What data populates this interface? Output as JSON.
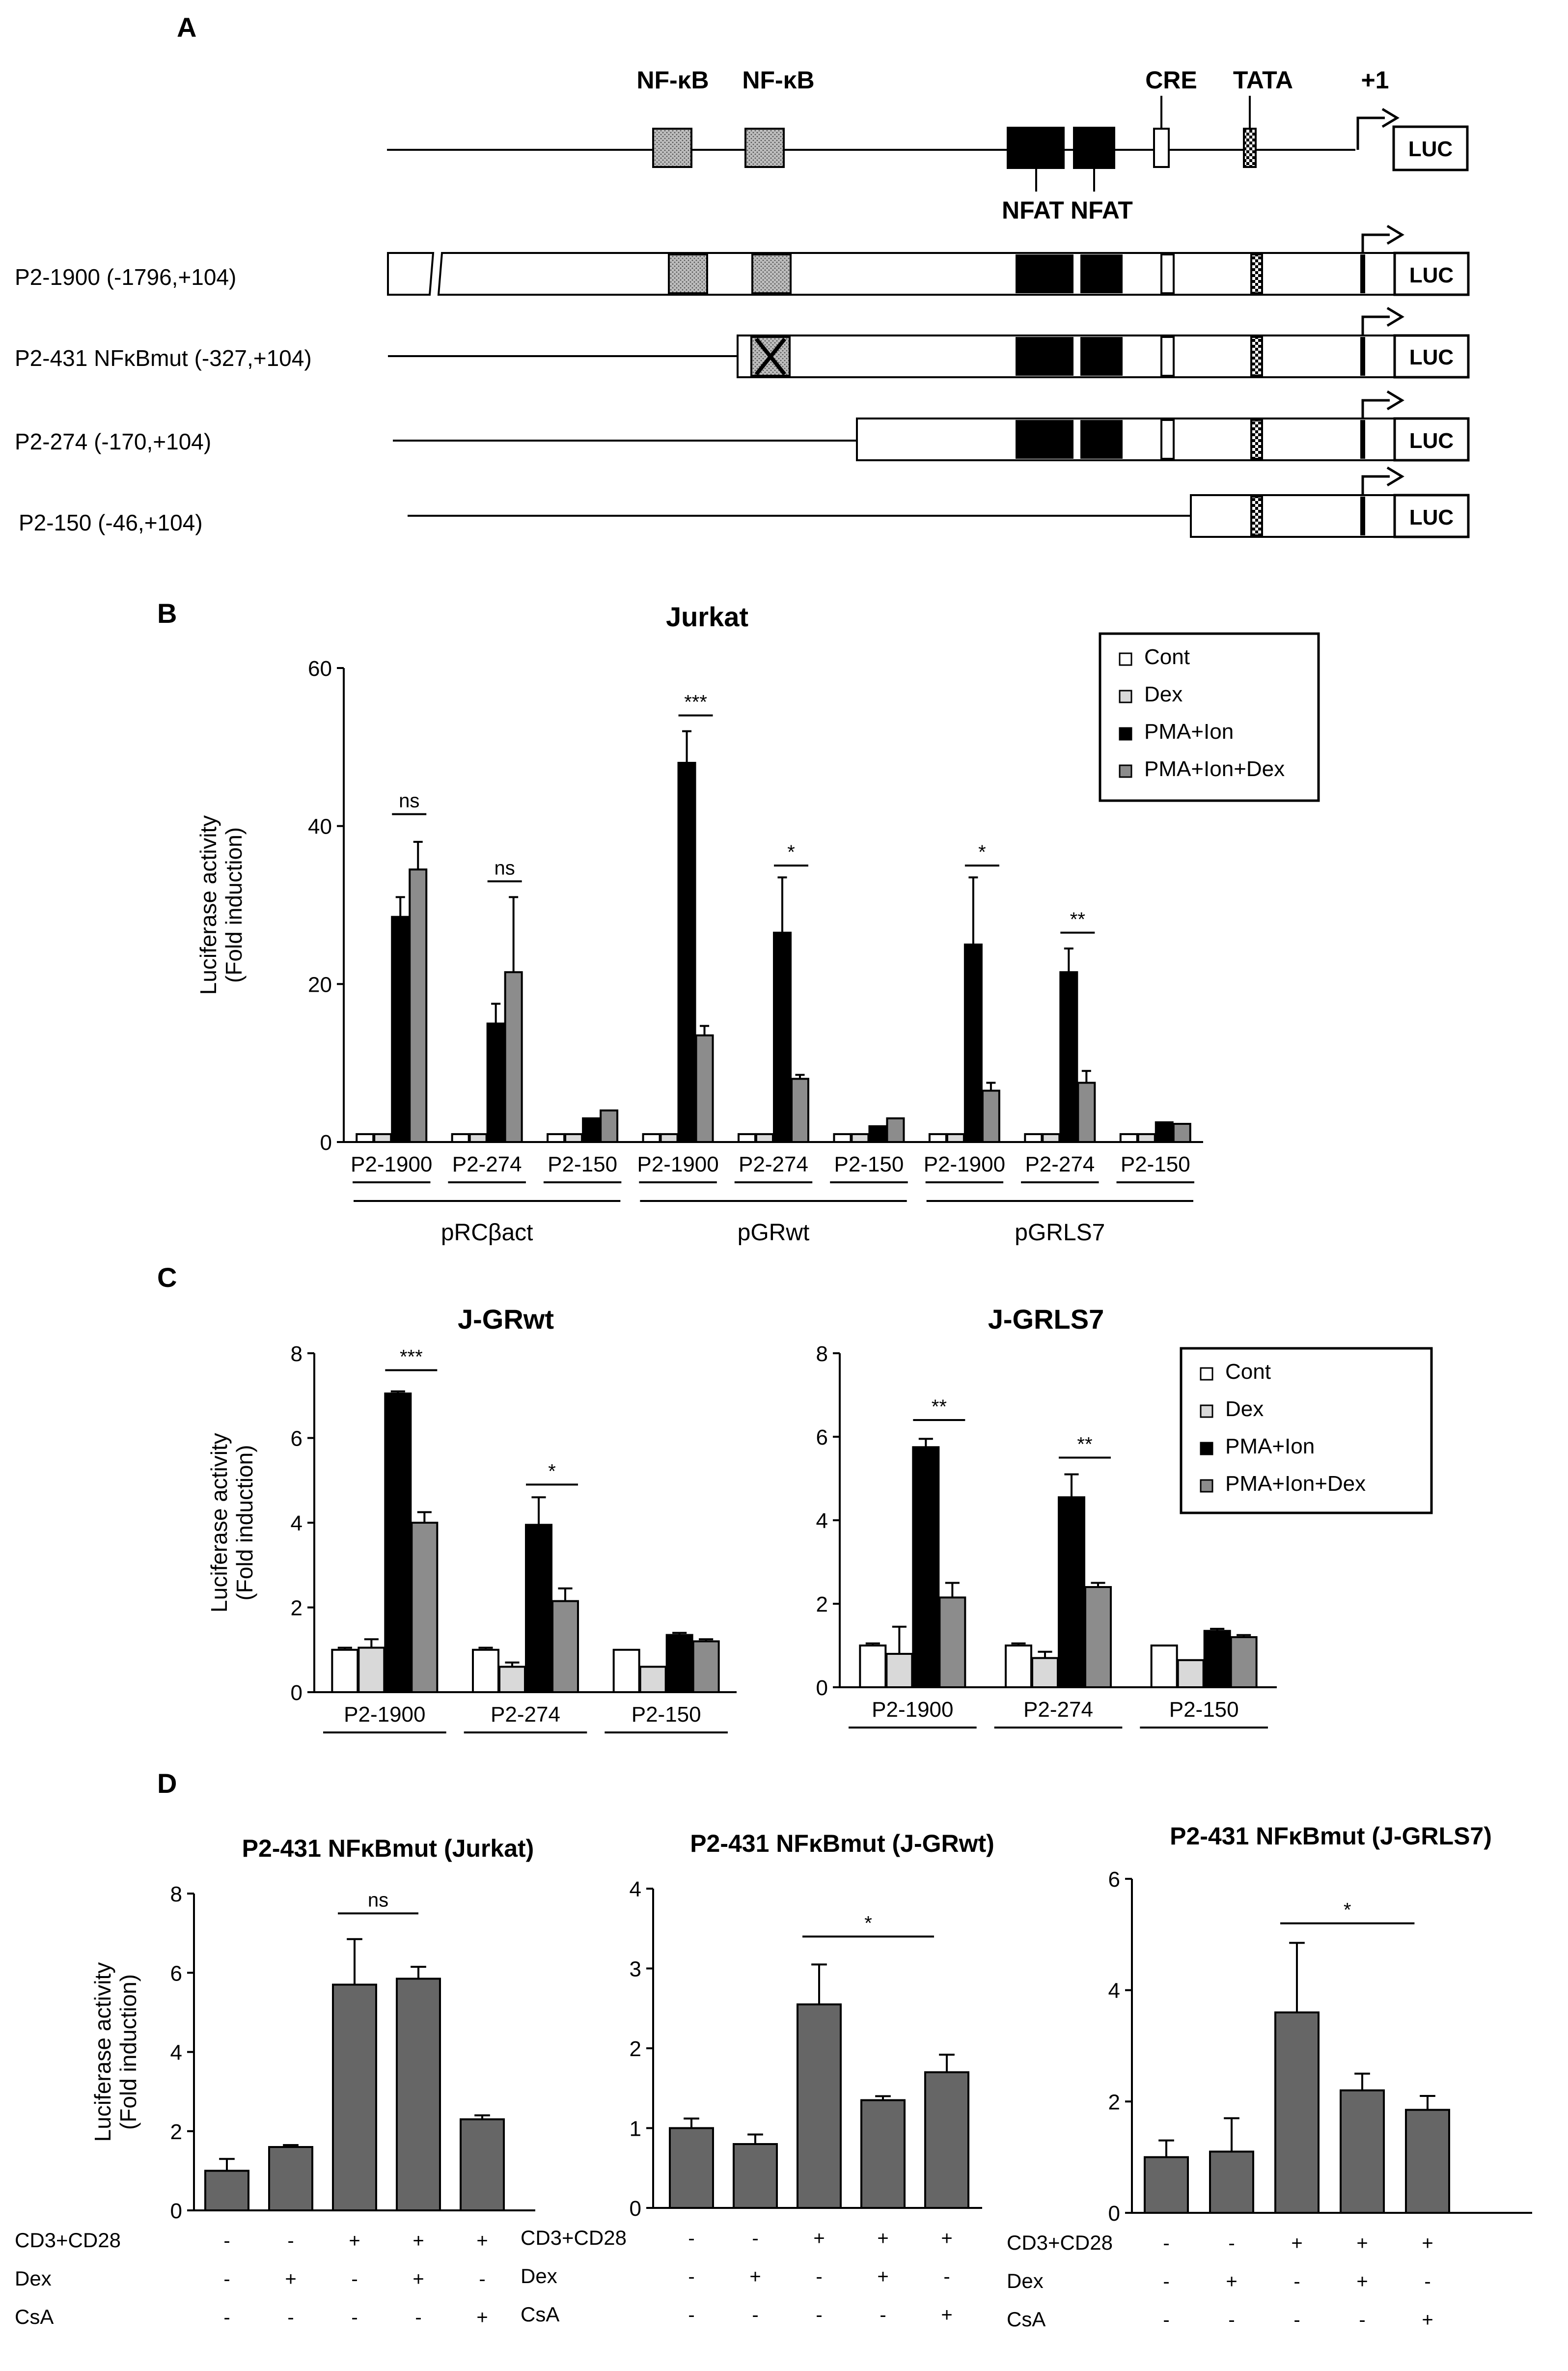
{
  "panel_labels": [
    "A",
    "B",
    "C",
    "D"
  ],
  "colors": {
    "cont": "#ffffff",
    "dex": "#d9d9d9",
    "pma_ion": "#000000",
    "pma_ion_dex": "#8c8c8c",
    "panel_d_bar": "#666666",
    "nfkb_box": "#bdbdbd",
    "line": "#000000"
  },
  "legend_items": [
    "Cont",
    "Dex",
    "PMA+Ion",
    "PMA+Ion+Dex"
  ],
  "schematic": {
    "top_labels": [
      "NF-κB",
      "NF-κB",
      "CRE",
      "TATA",
      "+1"
    ],
    "bottom_labels": [
      "NFAT",
      "NFAT"
    ],
    "luc_label": "LUC",
    "constructs": [
      "P2-1900 (-1796,+104)",
      "P2-431 NFκBmut (-327,+104)",
      "P2-274 (-170,+104)",
      "P2-150   (-46,+104)"
    ]
  },
  "chart_data": [
    {
      "type": "bar",
      "panel": "B",
      "title": "Jurkat",
      "ylabel_lines": [
        "Luciferase activity",
        "(Fold induction)"
      ],
      "ylim": [
        0,
        60
      ],
      "yticks": [
        "0",
        "20",
        "40",
        "60"
      ],
      "categories": [
        "P2-1900",
        "P2-274",
        "P2-150",
        "P2-1900",
        "P2-274",
        "P2-150",
        "P2-1900",
        "P2-274",
        "P2-150"
      ],
      "groups": [
        "pRCβact",
        "pGRwt",
        "pGRLS7"
      ],
      "series": [
        {
          "name": "Cont",
          "values": [
            1,
            1,
            1,
            1,
            1,
            1,
            1,
            1,
            1
          ]
        },
        {
          "name": "Dex",
          "values": [
            1,
            1,
            1,
            1,
            1,
            1,
            1,
            1,
            1
          ]
        },
        {
          "name": "PMA+Ion",
          "values": [
            28.5,
            15,
            3,
            48,
            26.5,
            2,
            25,
            21.5,
            2.5
          ]
        },
        {
          "name": "PMA+Ion+Dex",
          "values": [
            34.5,
            21.5,
            4,
            13.5,
            8,
            3,
            6.5,
            7.5,
            2.3
          ]
        }
      ],
      "errors": [
        [
          0,
          0,
          0,
          0,
          0,
          0,
          0,
          0,
          0
        ],
        [
          0,
          0,
          0,
          0,
          0,
          0,
          0,
          0,
          0
        ],
        [
          2.5,
          2.5,
          0,
          4,
          7,
          0,
          8.5,
          3,
          0
        ],
        [
          3.5,
          9.5,
          0,
          1.2,
          0.5,
          0,
          1,
          1.5,
          0
        ]
      ],
      "significance": [
        {
          "category": 0,
          "label": "ns",
          "y": 41.5
        },
        {
          "category": 1,
          "label": "ns",
          "y": 33
        },
        {
          "category": 3,
          "label": "***",
          "y": 54
        },
        {
          "category": 4,
          "label": "*",
          "y": 35
        },
        {
          "category": 6,
          "label": "*",
          "y": 35
        },
        {
          "category": 7,
          "label": "**",
          "y": 26.5
        }
      ],
      "legend": "top-right"
    },
    {
      "type": "bar",
      "panel": "C",
      "title": "J-GRwt",
      "ylabel_lines": [
        "Luciferase activity",
        "(Fold induction)"
      ],
      "ylim": [
        0,
        8
      ],
      "yticks": [
        "0",
        "2",
        "4",
        "6",
        "8"
      ],
      "categories": [
        "P2-1900",
        "P2-274",
        "P2-150"
      ],
      "series": [
        {
          "name": "Cont",
          "values": [
            1,
            1,
            1
          ]
        },
        {
          "name": "Dex",
          "values": [
            1.05,
            0.6,
            0.6
          ]
        },
        {
          "name": "PMA+Ion",
          "values": [
            7.05,
            3.95,
            1.35
          ]
        },
        {
          "name": "PMA+Ion+Dex",
          "values": [
            4,
            2.15,
            1.2
          ]
        }
      ],
      "errors": [
        [
          0.05,
          0.05,
          0
        ],
        [
          0.2,
          0.1,
          0
        ],
        [
          0.05,
          0.65,
          0.05
        ],
        [
          0.25,
          0.3,
          0.05
        ]
      ],
      "significance": [
        {
          "category": 0,
          "label": "***",
          "y": 7.6
        },
        {
          "category": 1,
          "label": "*",
          "y": 4.9
        }
      ]
    },
    {
      "type": "bar",
      "panel": "C",
      "title": "J-GRLS7",
      "ylabel_lines": [],
      "ylim": [
        0,
        8
      ],
      "yticks": [
        "0",
        "2",
        "4",
        "6",
        "8"
      ],
      "categories": [
        "P2-1900",
        "P2-274",
        "P2-150"
      ],
      "series": [
        {
          "name": "Cont",
          "values": [
            1,
            1,
            1
          ]
        },
        {
          "name": "Dex",
          "values": [
            0.8,
            0.7,
            0.65
          ]
        },
        {
          "name": "PMA+Ion",
          "values": [
            5.75,
            4.55,
            1.35
          ]
        },
        {
          "name": "PMA+Ion+Dex",
          "values": [
            2.15,
            2.4,
            1.2
          ]
        }
      ],
      "errors": [
        [
          0.05,
          0.05,
          0
        ],
        [
          0.65,
          0.15,
          0
        ],
        [
          0.2,
          0.55,
          0.05
        ],
        [
          0.35,
          0.1,
          0.05
        ]
      ],
      "significance": [
        {
          "category": 0,
          "label": "**",
          "y": 6.4
        },
        {
          "category": 1,
          "label": "**",
          "y": 5.5
        }
      ],
      "legend": "top-right"
    },
    {
      "type": "bar",
      "panel": "D",
      "title": "P2-431 NFκBmut (Jurkat)",
      "ylabel_lines": [
        "Luciferase activity",
        "(Fold induction)"
      ],
      "ylim": [
        0,
        8
      ],
      "yticks": [
        "0",
        "2",
        "4",
        "6",
        "8"
      ],
      "values": [
        1,
        1.6,
        5.7,
        5.85,
        2.3
      ],
      "errors": [
        0.3,
        0.05,
        1.15,
        0.3,
        0.1
      ],
      "significance": [
        {
          "from": 2,
          "to": 3,
          "label": "ns",
          "y": 7.5
        }
      ],
      "condition_labels": [
        "CD3+CD28",
        "Dex",
        "CsA"
      ],
      "conditions": [
        [
          "-",
          "-",
          "+",
          "+",
          "+"
        ],
        [
          "-",
          "+",
          "-",
          "+",
          "-"
        ],
        [
          "-",
          "-",
          "-",
          "-",
          "+"
        ]
      ]
    },
    {
      "type": "bar",
      "panel": "D",
      "title": "P2-431 NFκBmut (J-GRwt)",
      "ylabel_lines": [],
      "ylim": [
        0,
        4
      ],
      "yticks": [
        "0",
        "1",
        "2",
        "3",
        "4"
      ],
      "values": [
        1,
        0.8,
        2.55,
        1.35,
        1.7
      ],
      "errors": [
        0.12,
        0.12,
        0.5,
        0.05,
        0.22
      ],
      "significance": [
        {
          "from": 2,
          "to": 3.8,
          "label": "*",
          "y": 3.4
        }
      ],
      "condition_labels": [
        "CD3+CD28",
        "Dex",
        "CsA"
      ],
      "conditions": [
        [
          "-",
          "-",
          "+",
          "+",
          "+"
        ],
        [
          "-",
          "+",
          "-",
          "+",
          "-"
        ],
        [
          "-",
          "-",
          "-",
          "-",
          "+"
        ]
      ]
    },
    {
      "type": "bar",
      "panel": "D",
      "title": "P2-431 NFκBmut (J-GRLS7)",
      "ylabel_lines": [],
      "ylim": [
        0,
        6
      ],
      "yticks": [
        "0",
        "2",
        "4",
        "6"
      ],
      "values": [
        1,
        1.1,
        3.6,
        2.2,
        1.85
      ],
      "errors": [
        0.3,
        0.6,
        1.25,
        0.3,
        0.25
      ],
      "significance": [
        {
          "from": 2,
          "to": 3.8,
          "label": "*",
          "y": 5.2
        }
      ],
      "condition_labels": [
        "CD3+CD28",
        "Dex",
        "CsA"
      ],
      "conditions": [
        [
          "-",
          "-",
          "+",
          "+",
          "+"
        ],
        [
          "-",
          "+",
          "-",
          "+",
          "-"
        ],
        [
          "-",
          "-",
          "-",
          "-",
          "+"
        ]
      ]
    }
  ]
}
